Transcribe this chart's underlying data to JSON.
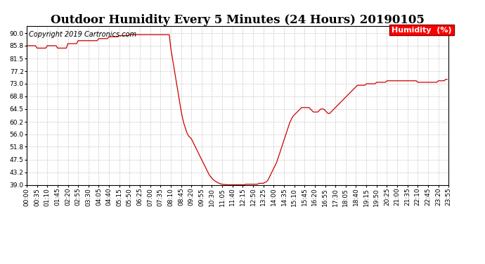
{
  "title": "Outdoor Humidity Every 5 Minutes (24 Hours) 20190105",
  "copyright_text": "Copyright 2019 Cartronics.com",
  "legend_label": "Humidity  (%)",
  "legend_bg": "#ff0000",
  "legend_fg": "#ffffff",
  "line_color": "#cc0000",
  "background_color": "#ffffff",
  "grid_color": "#bbbbbb",
  "ylim": [
    39.0,
    92.3
  ],
  "yticks": [
    39.0,
    43.2,
    47.5,
    51.8,
    56.0,
    60.2,
    64.5,
    68.8,
    73.0,
    77.2,
    81.5,
    85.8,
    90.0
  ],
  "title_fontsize": 12,
  "copyright_fontsize": 7,
  "tick_fontsize": 6.5,
  "legend_fontsize": 8,
  "humidities": [
    85.8,
    85.8,
    85.8,
    85.8,
    85.8,
    85.8,
    85.8,
    85.0,
    85.0,
    85.0,
    85.0,
    85.0,
    85.0,
    85.0,
    85.8,
    85.8,
    85.8,
    85.8,
    85.8,
    85.8,
    85.8,
    85.0,
    85.0,
    85.0,
    85.0,
    85.0,
    85.0,
    85.0,
    86.5,
    86.5,
    86.5,
    86.5,
    86.5,
    86.5,
    86.5,
    87.5,
    87.5,
    87.5,
    87.5,
    87.5,
    87.5,
    87.5,
    87.5,
    87.5,
    87.5,
    87.5,
    87.5,
    87.5,
    87.5,
    88.2,
    88.2,
    88.2,
    88.2,
    88.2,
    88.2,
    88.2,
    88.8,
    88.8,
    88.8,
    88.8,
    88.8,
    88.8,
    88.8,
    89.2,
    89.2,
    89.2,
    89.2,
    89.2,
    89.2,
    89.2,
    89.5,
    89.5,
    89.5,
    89.5,
    89.5,
    89.5,
    89.5,
    89.5,
    89.5,
    89.5,
    89.5,
    89.5,
    89.5,
    89.5,
    89.5,
    89.5,
    89.5,
    89.5,
    89.5,
    89.5,
    89.5,
    89.5,
    89.5,
    89.5,
    89.5,
    89.5,
    89.5,
    89.5,
    85.0,
    82.0,
    79.0,
    76.0,
    73.0,
    70.0,
    67.0,
    64.0,
    61.5,
    59.5,
    58.0,
    56.5,
    55.5,
    55.0,
    54.5,
    53.5,
    52.5,
    51.5,
    50.5,
    49.5,
    48.5,
    47.5,
    46.5,
    45.5,
    44.5,
    43.5,
    42.5,
    41.8,
    41.2,
    40.7,
    40.3,
    40.0,
    39.7,
    39.5,
    39.3,
    39.2,
    39.1,
    39.1,
    39.0,
    39.0,
    39.0,
    39.0,
    39.0,
    39.0,
    39.0,
    39.0,
    39.0,
    39.0,
    39.0,
    39.0,
    39.0,
    39.2,
    39.2,
    39.2,
    39.2,
    39.2,
    39.2,
    39.2,
    39.2,
    39.2,
    39.5,
    39.5,
    39.5,
    39.5,
    39.8,
    40.0,
    40.5,
    41.5,
    42.5,
    43.5,
    44.5,
    45.5,
    46.5,
    48.0,
    49.5,
    51.0,
    52.5,
    54.0,
    55.5,
    57.0,
    58.5,
    60.0,
    61.0,
    62.0,
    62.5,
    63.0,
    63.5,
    64.0,
    64.5,
    65.0,
    65.0,
    65.0,
    65.0,
    65.0,
    65.0,
    64.5,
    64.0,
    63.5,
    63.5,
    63.5,
    63.5,
    64.0,
    64.5,
    64.5,
    64.5,
    64.0,
    63.5,
    63.0,
    63.0,
    63.5,
    64.0,
    64.5,
    65.0,
    65.5,
    66.0,
    66.5,
    67.0,
    67.5,
    68.0,
    68.5,
    69.0,
    69.5,
    70.0,
    70.5,
    71.0,
    71.5,
    72.0,
    72.5,
    72.5,
    72.5,
    72.5,
    72.5,
    72.5,
    73.0,
    73.0,
    73.0,
    73.0,
    73.0,
    73.0,
    73.0,
    73.5,
    73.5,
    73.5,
    73.5,
    73.5,
    73.5,
    73.5,
    74.0,
    74.0,
    74.0,
    74.0,
    74.0,
    74.0,
    74.0,
    74.0,
    74.0,
    74.0,
    74.0,
    74.0,
    74.0,
    74.0,
    74.0,
    74.0,
    74.0,
    74.0,
    74.0,
    74.0,
    74.0,
    73.5,
    73.5,
    73.5,
    73.5,
    73.5,
    73.5,
    73.5,
    73.5,
    73.5,
    73.5,
    73.5,
    73.5,
    73.5,
    73.5,
    74.0,
    74.0,
    74.0,
    74.0,
    74.0,
    74.5,
    74.5
  ],
  "xtick_labels": [
    "00:00",
    "00:35",
    "01:10",
    "01:45",
    "02:20",
    "02:55",
    "03:30",
    "04:05",
    "04:40",
    "05:15",
    "05:50",
    "06:25",
    "07:00",
    "07:35",
    "08:10",
    "08:45",
    "09:20",
    "09:55",
    "10:30",
    "11:05",
    "11:40",
    "12:15",
    "12:50",
    "13:25",
    "14:00",
    "14:35",
    "15:10",
    "15:45",
    "16:20",
    "16:55",
    "17:30",
    "18:05",
    "18:40",
    "19:15",
    "19:50",
    "20:25",
    "21:00",
    "21:35",
    "22:10",
    "22:45",
    "23:20",
    "23:55"
  ]
}
